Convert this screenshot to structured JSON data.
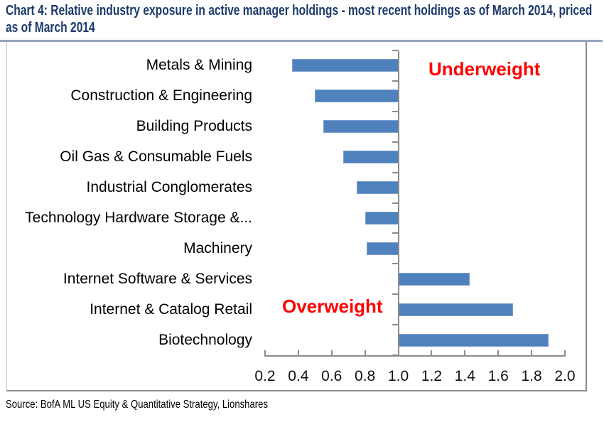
{
  "colors": {
    "bar": "#4F81BD",
    "title_text": "#1B3A6B",
    "annotation_red": "#FF0000",
    "axis_gray": "#8C8C8C",
    "top_rule": "#93A4BF",
    "frame_border": "#8C8C8C",
    "label_text": "#000000"
  },
  "chart_data": {
    "type": "bar",
    "orientation": "horizontal",
    "title": "Chart 4: Relative industry exposure in active manager holdings - most recent holdings as of March 2014, priced as of March 2014",
    "source": "Source: BofA ML US Equity & Quantitative Strategy, Lionshares",
    "categories": [
      "Metals & Mining",
      "Construction & Engineering",
      "Building Products",
      "Oil Gas & Consumable Fuels",
      "Industrial Conglomerates",
      "Technology Hardware Storage &...",
      "Machinery",
      "Internet Software & Services",
      "Internet & Catalog Retail",
      "Biotechnology"
    ],
    "values": [
      0.36,
      0.5,
      0.55,
      0.67,
      0.75,
      0.8,
      0.81,
      1.43,
      1.69,
      1.9
    ],
    "baseline": 1.0,
    "xlim": [
      0.2,
      2.0
    ],
    "xtick_labels": [
      "0.2",
      "0.4",
      "0.6",
      "0.8",
      "1.0",
      "1.2",
      "1.4",
      "1.6",
      "1.8",
      "2.0"
    ],
    "grid": false,
    "legend": "none",
    "annotations": {
      "underweight": {
        "text": "Underweight"
      },
      "overweight": {
        "text": "Overweight"
      }
    }
  }
}
